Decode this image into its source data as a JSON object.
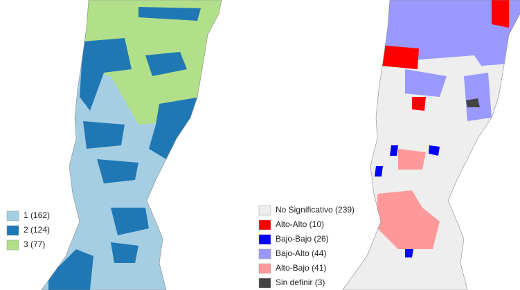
{
  "left_map": {
    "legend": [
      {
        "label": "1 (162)",
        "color": "#a6cee3"
      },
      {
        "label": "2 (124)",
        "color": "#1f78b4"
      },
      {
        "label": "3 (77)",
        "color": "#b2df8a"
      }
    ]
  },
  "right_map": {
    "legend": [
      {
        "label": "No Significativo (239)",
        "color": "#eeeeee"
      },
      {
        "label": "Alto-Alto (10)",
        "color": "#ff0000"
      },
      {
        "label": "Bajo-Bajo (26)",
        "color": "#0000ff"
      },
      {
        "label": "Bajo-Alto (44)",
        "color": "#9999ff"
      },
      {
        "label": "Alto-Bajo (41)",
        "color": "#ff9999"
      },
      {
        "label": "Sin definir (3)",
        "color": "#444444"
      }
    ]
  }
}
